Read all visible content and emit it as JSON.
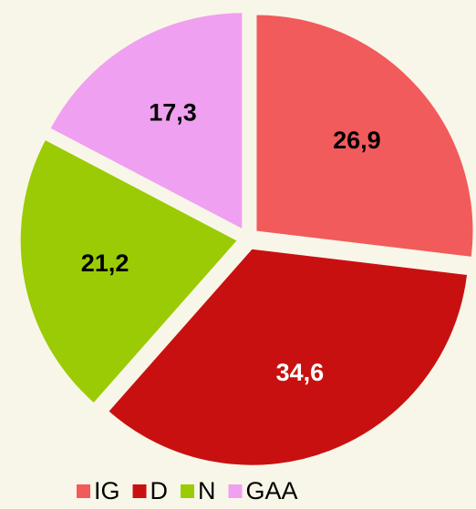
{
  "chart_data": {
    "type": "pie",
    "categories": [
      "IG",
      "D",
      "N",
      "GAA"
    ],
    "values": [
      26.9,
      34.6,
      21.2,
      17.3
    ],
    "value_labels": [
      "26,9",
      "34,6",
      "21,2",
      "17,3"
    ],
    "colors": [
      "#f25b5b",
      "#c91010",
      "#9acb04",
      "#f0a0f0"
    ],
    "label_colors": [
      "#000000",
      "#ffffff",
      "#000000",
      "#000000"
    ],
    "legend": "bottom"
  }
}
